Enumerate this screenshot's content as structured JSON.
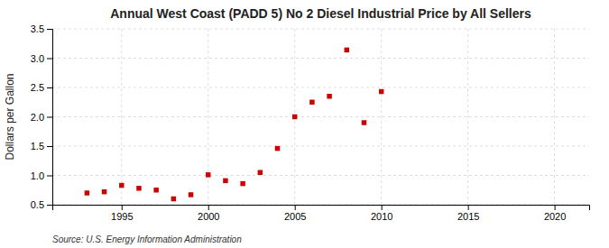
{
  "chart_data": {
    "type": "scatter",
    "title": "Annual West Coast (PADD 5) No 2 Diesel Industrial Price by All Sellers",
    "ylabel": "Dollars per Gallon",
    "source": "Source: U.S. Energy Information Administration",
    "x": [
      1993,
      1994,
      1995,
      1996,
      1997,
      1998,
      1999,
      2000,
      2001,
      2002,
      2003,
      2004,
      2005,
      2006,
      2007,
      2008,
      2009,
      2010
    ],
    "values": [
      0.7,
      0.72,
      0.83,
      0.78,
      0.75,
      0.6,
      0.67,
      1.01,
      0.91,
      0.86,
      1.05,
      1.46,
      2.0,
      2.25,
      2.35,
      3.14,
      1.9,
      2.43
    ],
    "color": "#cc0000",
    "marker": "square",
    "xlim": [
      1991,
      2022
    ],
    "ylim": [
      0.5,
      3.5
    ],
    "xticks": [
      1995,
      2000,
      2005,
      2010,
      2015,
      2020
    ],
    "yticks": [
      0.5,
      {
        "value": 1.0,
        "label": "1.0"
      },
      1.5,
      {
        "value": 2.0,
        "label": "2.0"
      },
      2.5,
      {
        "value": 3.0,
        "label": "3.0"
      },
      3.5
    ],
    "grid": true
  }
}
